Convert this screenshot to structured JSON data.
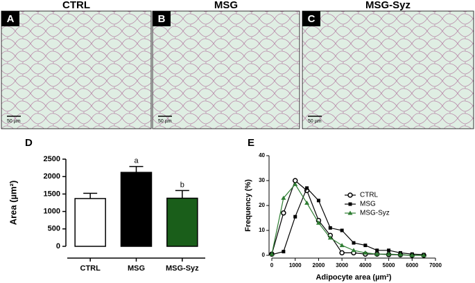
{
  "panels": [
    {
      "letter": "A",
      "title": "CTRL",
      "scale": "50 µm"
    },
    {
      "letter": "B",
      "title": "MSG",
      "scale": "50 µm"
    },
    {
      "letter": "C",
      "title": "MSG-Syz",
      "scale": "50 µm"
    }
  ],
  "chart_data": [
    {
      "type": "bar",
      "panel_label": "D",
      "ylabel": "Area (µm²)",
      "categories": [
        "CTRL",
        "MSG",
        "MSG-Syz"
      ],
      "values": [
        1370,
        2120,
        1380
      ],
      "errors": [
        150,
        170,
        220
      ],
      "colors": [
        "#ffffff",
        "#000000",
        "#1a5e1a"
      ],
      "annotations": [
        {
          "category": "MSG",
          "text": "a"
        },
        {
          "category": "MSG-Syz",
          "text": "b"
        }
      ],
      "ylim": [
        0,
        2500
      ],
      "yticks": [
        0,
        500,
        1000,
        1500,
        2000,
        2500
      ]
    },
    {
      "type": "line",
      "panel_label": "E",
      "xlabel": "Adipocyte area (µm²)",
      "ylabel": "Frequency (%)",
      "x": [
        0,
        500,
        1000,
        1500,
        2000,
        2500,
        3000,
        3500,
        4000,
        4500,
        5000,
        5500,
        6000,
        6500
      ],
      "series": [
        {
          "name": "CTRL",
          "color": "#000000",
          "marker": "open-circle",
          "values": [
            0.5,
            17,
            30,
            26,
            14,
            8,
            1,
            1,
            0.5,
            0.5,
            0.3,
            0.2,
            0,
            0
          ]
        },
        {
          "name": "MSG",
          "color": "#000000",
          "marker": "square",
          "values": [
            0.3,
            1.5,
            15.5,
            27,
            22,
            11,
            10,
            5,
            4,
            2,
            2,
            1,
            0.5,
            0.3
          ]
        },
        {
          "name": "MSG-Syz",
          "color": "#2e7d32",
          "marker": "triangle",
          "values": [
            0.5,
            23,
            28.5,
            21,
            13,
            7,
            4,
            2,
            1,
            0.5,
            0.5,
            0.3,
            0,
            0
          ]
        }
      ],
      "xlim": [
        0,
        7000
      ],
      "xticks": [
        0,
        1000,
        2000,
        3000,
        4000,
        5000,
        6000,
        7000
      ],
      "ylim": [
        0,
        40
      ],
      "yticks": [
        0,
        10,
        20,
        30,
        40
      ],
      "legend": "right"
    }
  ]
}
